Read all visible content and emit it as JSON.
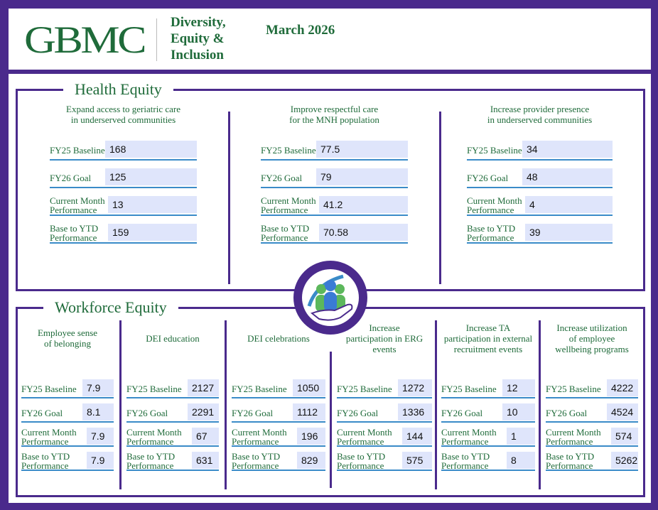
{
  "header": {
    "logo": "GBMC",
    "title_lines": [
      "Diversity,",
      "Equity &",
      "Inclusion"
    ],
    "month": "March 2026"
  },
  "health_equity": {
    "title": "Health Equity",
    "columns": [
      {
        "heading_lines": [
          "Expand access to geriatric care",
          "in underserved communities"
        ],
        "rows": [
          {
            "label": [
              "FY25 Baseline"
            ],
            "value": "168"
          },
          {
            "label": [
              "FY26 Goal"
            ],
            "value": "125"
          },
          {
            "label": [
              "Current Month",
              "Performance"
            ],
            "value": "13"
          },
          {
            "label": [
              "Base to YTD",
              "Performance"
            ],
            "value": "159"
          }
        ]
      },
      {
        "heading_lines": [
          "Improve respectful care",
          "for the MNH population"
        ],
        "rows": [
          {
            "label": [
              "FY25 Baseline"
            ],
            "value": "77.5"
          },
          {
            "label": [
              "FY26 Goal"
            ],
            "value": "79"
          },
          {
            "label": [
              "Current Month",
              "Performance"
            ],
            "value": "41.2"
          },
          {
            "label": [
              "Base to YTD",
              "Performance"
            ],
            "value": "70.58"
          }
        ]
      },
      {
        "heading_lines": [
          "Increase provider presence",
          "in underserved communities"
        ],
        "rows": [
          {
            "label": [
              "FY25 Baseline"
            ],
            "value": "34"
          },
          {
            "label": [
              "FY26 Goal"
            ],
            "value": "48"
          },
          {
            "label": [
              "Current Month",
              "Performance"
            ],
            "value": "4"
          },
          {
            "label": [
              "Base to YTD",
              "Performance"
            ],
            "value": "39"
          }
        ]
      }
    ]
  },
  "workforce_equity": {
    "title": "Workforce Equity",
    "columns": [
      {
        "heading_lines": [
          "Employee sense",
          "of belonging"
        ],
        "rows": [
          {
            "label": [
              "FY25 Baseline"
            ],
            "value": "7.9"
          },
          {
            "label": [
              "FY26 Goal"
            ],
            "value": "8.1"
          },
          {
            "label": [
              "Current Month",
              "Performance"
            ],
            "value": "7.9"
          },
          {
            "label": [
              "Base to YTD",
              "Performance"
            ],
            "value": "7.9"
          }
        ]
      },
      {
        "heading_lines": [
          "DEI education"
        ],
        "rows": [
          {
            "label": [
              "FY25 Baseline"
            ],
            "value": "2127"
          },
          {
            "label": [
              "FY26 Goal"
            ],
            "value": "2291"
          },
          {
            "label": [
              "Current Month",
              "Performance"
            ],
            "value": "67"
          },
          {
            "label": [
              "Base to YTD",
              "Performance"
            ],
            "value": "631"
          }
        ]
      },
      {
        "heading_lines": [
          "DEI celebrations"
        ],
        "rows": [
          {
            "label": [
              "FY25 Baseline"
            ],
            "value": "1050"
          },
          {
            "label": [
              "FY26 Goal"
            ],
            "value": "1112"
          },
          {
            "label": [
              "Current Month",
              "Performance"
            ],
            "value": "196"
          },
          {
            "label": [
              "Base to YTD",
              "Performance"
            ],
            "value": "829"
          }
        ]
      },
      {
        "heading_lines": [
          "Increase",
          "participation in ERG",
          "events"
        ],
        "rows": [
          {
            "label": [
              "FY25 Baseline"
            ],
            "value": "1272"
          },
          {
            "label": [
              "FY26 Goal"
            ],
            "value": "1336"
          },
          {
            "label": [
              "Current Month",
              "Performance"
            ],
            "value": "144"
          },
          {
            "label": [
              "Base to YTD",
              "Performance"
            ],
            "value": "575"
          }
        ]
      },
      {
        "heading_lines": [
          "Increase TA",
          "participation in external",
          "recruitment events"
        ],
        "rows": [
          {
            "label": [
              "FY25 Baseline"
            ],
            "value": "12"
          },
          {
            "label": [
              "FY26 Goal"
            ],
            "value": "10"
          },
          {
            "label": [
              "Current Month",
              "Performance"
            ],
            "value": "1"
          },
          {
            "label": [
              "Base to YTD",
              "Performance"
            ],
            "value": "8"
          }
        ]
      },
      {
        "heading_lines": [
          "Increase utilization",
          "of employee",
          "wellbeing programs"
        ],
        "rows": [
          {
            "label": [
              "FY25 Baseline"
            ],
            "value": "4222"
          },
          {
            "label": [
              "FY26 Goal"
            ],
            "value": "4524"
          },
          {
            "label": [
              "Current Month",
              "Performance"
            ],
            "value": "574"
          },
          {
            "label": [
              "Base to YTD",
              "Performance"
            ],
            "value": "5262"
          }
        ]
      }
    ]
  },
  "colors": {
    "frame_purple": "#4a2a8c",
    "brand_green": "#1f6b3a",
    "value_box": "#dfe5fb",
    "row_underline": "#3a8bc8"
  },
  "icons": {
    "badge": "people-in-hand-icon"
  }
}
